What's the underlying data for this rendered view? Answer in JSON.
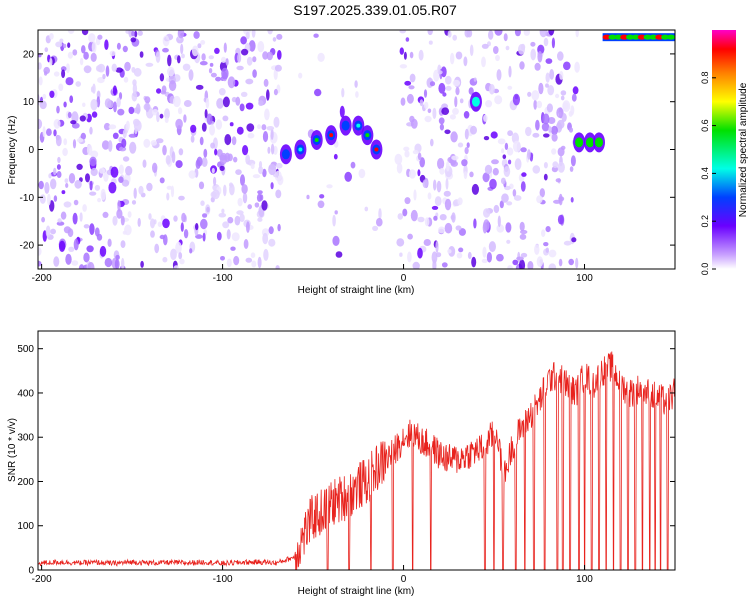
{
  "figure_title": "S197.2025.339.01.05.R07",
  "chart_data": [
    {
      "type": "heatmap",
      "title": "S197.2025.339.01.05.R07",
      "xlabel": "Height of straight line (km)",
      "ylabel": "Frequency (Hz)",
      "xlim": [
        -202,
        150
      ],
      "ylim": [
        -25,
        25
      ],
      "xticks": [
        -200,
        -100,
        0,
        100
      ],
      "yticks": [
        -20,
        -10,
        0,
        10,
        20
      ],
      "colorbar": {
        "label": "Normalized spectral amplitude",
        "range": [
          0,
          1
        ],
        "ticks": [
          0.0,
          0.2,
          0.4,
          0.6,
          0.8
        ],
        "colormap": [
          "#ff00c8",
          "#ff0000",
          "#ff8000",
          "#ffff00",
          "#00e000",
          "#00ffe6",
          "#0040ff",
          "#6a00ff",
          "#c8a0ff",
          "#ffffff"
        ]
      },
      "blank_gaps_km": [
        [
          -68,
          -58
        ],
        [
          -13,
          -3
        ],
        [
          40,
          44
        ],
        [
          96,
          110
        ]
      ],
      "features": [
        {
          "name": "diagonal-track",
          "x": [
            -65,
            -57,
            -48,
            -40,
            -32,
            -25,
            -20,
            -15
          ],
          "y": [
            -1,
            0,
            2,
            3,
            5,
            5,
            3,
            0
          ]
        },
        {
          "name": "spot-40km",
          "x": [
            40
          ],
          "y": [
            10
          ]
        },
        {
          "name": "band-100km",
          "x": [
            97,
            103,
            108
          ],
          "y": [
            1.5,
            1.5,
            1.5
          ]
        },
        {
          "name": "band-top-right",
          "x": [
            110,
            150
          ],
          "y": [
            23.5,
            23.5
          ]
        }
      ]
    },
    {
      "type": "line",
      "xlabel": "Height of straight line (km)",
      "ylabel": "SNR (10 * v/v)",
      "xlim": [
        -202,
        150
      ],
      "ylim": [
        0,
        540
      ],
      "xticks": [
        -200,
        -100,
        0,
        100
      ],
      "yticks": [
        0,
        100,
        200,
        300,
        400,
        500
      ],
      "series": [
        {
          "name": "SNR",
          "color": "#e8231e",
          "x": [
            -202,
            -190,
            -180,
            -170,
            -160,
            -150,
            -140,
            -130,
            -120,
            -110,
            -100,
            -90,
            -80,
            -70,
            -60,
            -55,
            -50,
            -45,
            -40,
            -35,
            -30,
            -25,
            -20,
            -15,
            -10,
            -5,
            0,
            5,
            10,
            15,
            20,
            25,
            30,
            35,
            40,
            44,
            48,
            52,
            55,
            60,
            65,
            70,
            75,
            80,
            85,
            90,
            95,
            100,
            105,
            110,
            115,
            120,
            125,
            130,
            135,
            140,
            145,
            150
          ],
          "y": [
            15,
            18,
            16,
            17,
            15,
            18,
            16,
            17,
            16,
            18,
            15,
            17,
            18,
            16,
            30,
            80,
            120,
            130,
            150,
            160,
            170,
            190,
            200,
            230,
            250,
            270,
            300,
            310,
            290,
            280,
            260,
            250,
            250,
            260,
            270,
            275,
            300,
            310,
            200,
            280,
            320,
            350,
            380,
            430,
            440,
            420,
            400,
            440,
            420,
            450,
            460,
            420,
            400,
            410,
            400,
            390,
            380,
            400
          ]
        }
      ],
      "dropouts_km": [
        -42,
        -30,
        -18,
        -6,
        5,
        15,
        45,
        50,
        55,
        62,
        67,
        72,
        78,
        85,
        88,
        92,
        97,
        100,
        104,
        108,
        112,
        116,
        120,
        124,
        128,
        132,
        136,
        139,
        142,
        146
      ]
    }
  ]
}
